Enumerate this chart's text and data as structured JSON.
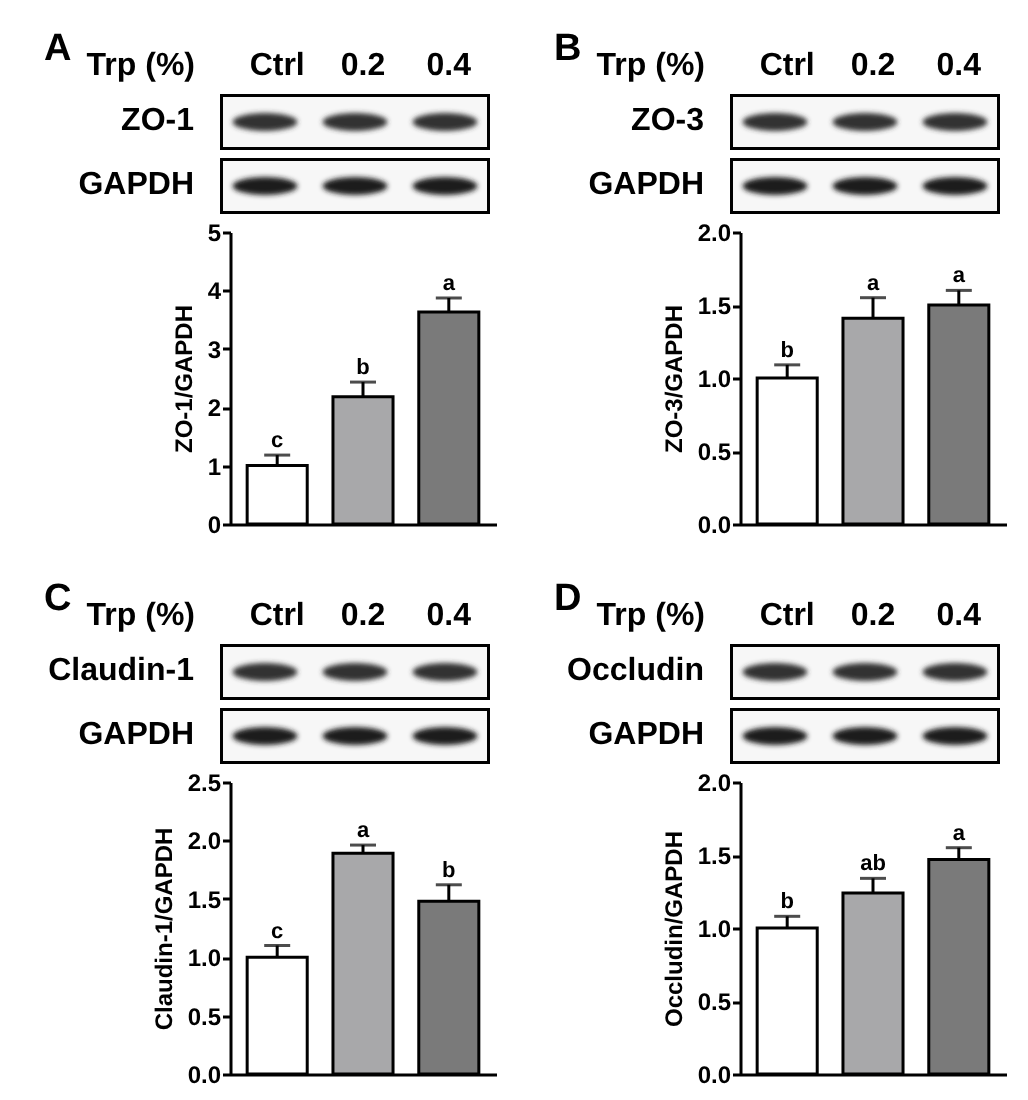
{
  "chart_data": [
    {
      "type": "bar",
      "title": "A",
      "xlabel": "Trp (%)",
      "ylabel": "ZO-1/GAPDH",
      "categories": [
        "Ctrl",
        "0.2",
        "0.4"
      ],
      "values": [
        1.0,
        2.18,
        3.63
      ],
      "colors": [
        "#ffffff",
        "#a8a8aa",
        "#7a7a7a"
      ],
      "errors": [
        [
          1.0,
          1.18
        ],
        [
          2.18,
          2.43
        ],
        [
          3.63,
          3.87
        ]
      ],
      "value_labels": [
        "c",
        "b",
        "a"
      ],
      "ylim": [
        0,
        5
      ],
      "yticks": [
        0,
        1,
        2,
        3,
        4,
        5
      ],
      "annotations": [
        "ZO-1",
        "GAPDH"
      ]
    },
    {
      "type": "bar",
      "title": "B",
      "xlabel": "Trp (%)",
      "ylabel": "ZO-3/GAPDH",
      "categories": [
        "Ctrl",
        "0.2",
        "0.4"
      ],
      "values": [
        1.0,
        1.41,
        1.5
      ],
      "colors": [
        "#ffffff",
        "#a8a8aa",
        "#7a7a7a"
      ],
      "errors": [
        [
          1.0,
          1.09
        ],
        [
          1.41,
          1.55
        ],
        [
          1.5,
          1.6
        ]
      ],
      "value_labels": [
        "b",
        "a",
        "a"
      ],
      "ylim": [
        0,
        2
      ],
      "yticks": [
        {
          "value": 0,
          "label": "0.0"
        },
        0.5,
        {
          "value": 1,
          "label": "1.0"
        },
        1.5,
        {
          "value": 2,
          "label": "2.0"
        }
      ],
      "annotations": [
        "ZO-3",
        "GAPDH"
      ]
    },
    {
      "type": "bar",
      "title": "C",
      "xlabel": "Trp (%)",
      "ylabel": "Claudin-1/GAPDH",
      "categories": [
        "Ctrl",
        "0.2",
        "0.4"
      ],
      "values": [
        1.0,
        1.89,
        1.48
      ],
      "colors": [
        "#ffffff",
        "#a8a8aa",
        "#7a7a7a"
      ],
      "errors": [
        [
          1.0,
          1.1
        ],
        [
          1.89,
          1.96
        ],
        [
          1.48,
          1.62
        ]
      ],
      "value_labels": [
        "c",
        "a",
        "b"
      ],
      "ylim": [
        0,
        2.5
      ],
      "yticks": [
        {
          "value": 0,
          "label": "0.0"
        },
        0.5,
        {
          "value": 1,
          "label": "1.0"
        },
        1.5,
        {
          "value": 2,
          "label": "2.0"
        },
        2.5
      ],
      "annotations": [
        "Claudin-1",
        "GAPDH"
      ]
    },
    {
      "type": "bar",
      "title": "D",
      "xlabel": "Trp (%)",
      "ylabel": "Occludin/GAPDH",
      "categories": [
        "Ctrl",
        "0.2",
        "0.4"
      ],
      "values": [
        1.0,
        1.24,
        1.47
      ],
      "colors": [
        "#ffffff",
        "#a8a8aa",
        "#7a7a7a"
      ],
      "errors": [
        [
          1.0,
          1.08
        ],
        [
          1.24,
          1.34
        ],
        [
          1.47,
          1.55
        ]
      ],
      "value_labels": [
        "b",
        "ab",
        "a"
      ],
      "ylim": [
        0,
        2
      ],
      "yticks": [
        {
          "value": 0,
          "label": "0.0"
        },
        0.5,
        {
          "value": 1,
          "label": "1.0"
        },
        1.5,
        {
          "value": 2,
          "label": "2.0"
        }
      ],
      "annotations": [
        "Occludin",
        "GAPDH"
      ]
    }
  ]
}
